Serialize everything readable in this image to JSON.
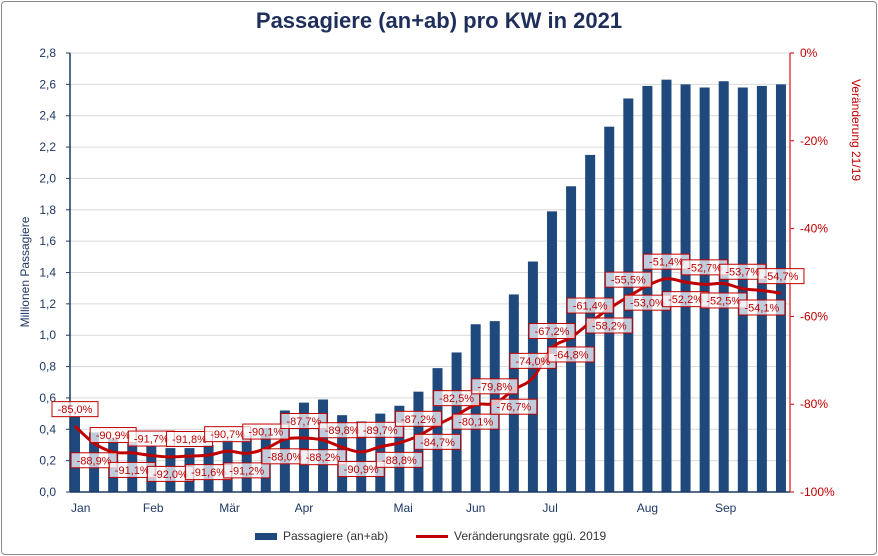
{
  "chart_data": {
    "type": "bar+line",
    "title": "Passagiere (an+ab) pro KW in 2021",
    "ylabel": "Millionen Passagiere",
    "y2label": "Veränderung 21/19",
    "ylim": [
      0,
      2.8
    ],
    "y2lim": [
      -100,
      0
    ],
    "yticks": [
      "0,0",
      "0,2",
      "0,4",
      "0,6",
      "0,8",
      "1,0",
      "1,2",
      "1,4",
      "1,6",
      "1,8",
      "2,0",
      "2,2",
      "2,4",
      "2,6",
      "2,8"
    ],
    "y2ticks": [
      "-100%",
      "-80%",
      "-60%",
      "-40%",
      "-20%",
      "0%"
    ],
    "grid": true,
    "legend_position": "bottom",
    "x_month_labels": [
      {
        "label": "Jan",
        "week": 0.3
      },
      {
        "label": "Feb",
        "week": 4.1
      },
      {
        "label": "Mär",
        "week": 8.1
      },
      {
        "label": "Apr",
        "week": 12.0
      },
      {
        "label": "Mai",
        "week": 17.2
      },
      {
        "label": "Jun",
        "week": 21.0
      },
      {
        "label": "Jul",
        "week": 24.9
      },
      {
        "label": "Aug",
        "week": 30.0
      },
      {
        "label": "Sep",
        "week": 34.1
      }
    ],
    "series": [
      {
        "name": "Passagiere (an+ab)",
        "type": "bar",
        "axis": "left",
        "color": "#1f497d",
        "values": [
          0.48,
          0.38,
          0.34,
          0.31,
          0.29,
          0.28,
          0.28,
          0.3,
          0.33,
          0.36,
          0.41,
          0.52,
          0.57,
          0.59,
          0.49,
          0.45,
          0.5,
          0.55,
          0.64,
          0.79,
          0.89,
          1.07,
          1.09,
          1.26,
          1.47,
          1.79,
          1.95,
          2.15,
          2.33,
          2.51,
          2.59,
          2.63,
          2.6,
          2.58,
          2.62,
          2.58,
          2.59,
          2.6
        ]
      },
      {
        "name": "Veränderungsrate ggü. 2019",
        "type": "line",
        "axis": "right",
        "color": "#c00000",
        "values": [
          -85.0,
          -88.9,
          -90.9,
          -91.1,
          -91.7,
          -92.0,
          -91.8,
          -91.6,
          -90.7,
          -91.2,
          -90.1,
          -88.0,
          -87.7,
          -88.2,
          -89.8,
          -90.9,
          -89.7,
          -88.8,
          -87.2,
          -84.7,
          -82.5,
          -80.1,
          -79.8,
          -76.7,
          -74.0,
          -67.2,
          -64.8,
          -61.4,
          -58.2,
          -55.5,
          -53.0,
          -51.4,
          -52.2,
          -52.7,
          -52.5,
          -53.7,
          -54.1,
          -54.7
        ],
        "labels": [
          "-85,0%",
          "-88,9%",
          "-90,9%",
          "-91,1%",
          "-91,7%",
          "-92,0%",
          "-91,8%",
          "-91,6%",
          "-90,7%",
          "-91,2%",
          "-90,1%",
          "-88,0%",
          "-87,7%",
          "-88,2%",
          "-89,8%",
          "-90,9%",
          "-89,7%",
          "-88,8%",
          "-87,2%",
          "-84,7%",
          "-82,5%",
          "-80,1%",
          "-79,8%",
          "-76,7%",
          "-74,0%",
          "-67,2%",
          "-64,8%",
          "-61,4%",
          "-58,2%",
          "-55,5%",
          "-53,0%",
          "-51,4%",
          "-52,2%",
          "-52,7%",
          "-52,5%",
          "-53,7%",
          "-54,1%",
          "-54,7%"
        ]
      }
    ]
  }
}
